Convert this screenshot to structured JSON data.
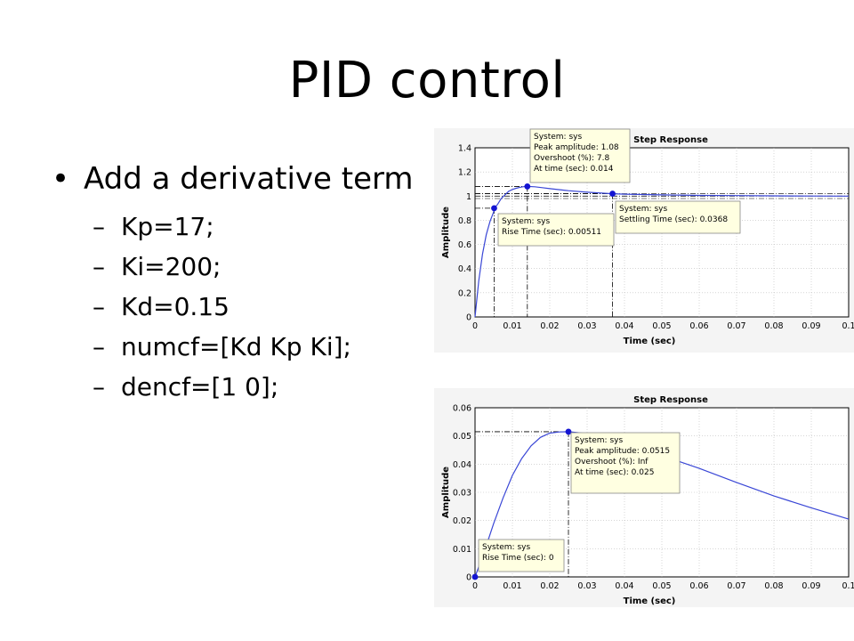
{
  "slide": {
    "title": "PID control",
    "bullet": "Add a derivative term",
    "sub_items": [
      "Kp=17;",
      "Ki=200;",
      "Kd=0.15",
      "numcf=[Kd Kp Ki];",
      "dencf=[1 0];"
    ]
  },
  "colors": {
    "response_line": "#3a47d6",
    "marker": "#1414d2",
    "tooltip_bg": "#ffffe1",
    "panel_bg": "#f4f4f4"
  },
  "chart_data": [
    {
      "type": "line",
      "title": "Step Response",
      "xlabel": "Time (sec)",
      "ylabel": "Amplitude",
      "xlim": [
        0,
        0.1
      ],
      "ylim": [
        0,
        1.4
      ],
      "xticks": [
        "0",
        "0.01",
        "0.02",
        "0.03",
        "0.04",
        "0.05",
        "0.06",
        "0.07",
        "0.08",
        "0.09",
        "0.1"
      ],
      "yticks": [
        "0",
        "0.2",
        "0.4",
        "0.6",
        "0.8",
        "1",
        "1.2",
        "1.4"
      ],
      "grid": true,
      "x": [
        0,
        0.001,
        0.002,
        0.003,
        0.004,
        0.005,
        0.00511,
        0.006,
        0.007,
        0.008,
        0.009,
        0.01,
        0.011,
        0.012,
        0.013,
        0.014,
        0.016,
        0.018,
        0.02,
        0.025,
        0.03,
        0.0368,
        0.04,
        0.05,
        0.06,
        0.07,
        0.08,
        0.09,
        0.1
      ],
      "y": [
        0,
        0.3,
        0.52,
        0.68,
        0.79,
        0.87,
        0.9,
        0.93,
        0.98,
        1.01,
        1.04,
        1.055,
        1.065,
        1.073,
        1.078,
        1.08,
        1.077,
        1.07,
        1.062,
        1.045,
        1.032,
        1.02,
        1.016,
        1.01,
        1.006,
        1.004,
        1.002,
        1.001,
        1.0
      ],
      "markers": [
        {
          "x": 0.00511,
          "y": 0.9
        },
        {
          "x": 0.014,
          "y": 1.08
        },
        {
          "x": 0.0368,
          "y": 1.02
        }
      ],
      "annotations": [
        {
          "lines": [
            "System: sys",
            "Peak amplitude: 1.08",
            "Overshoot (%): 7.8",
            "At time (sec): 0.014"
          ]
        },
        {
          "lines": [
            "System: sys",
            "Rise Time (sec): 0.00511"
          ]
        },
        {
          "lines": [
            "System: sys",
            "Settling Time (sec): 0.0368"
          ]
        }
      ]
    },
    {
      "type": "line",
      "title": "Step Response",
      "xlabel": "Time (sec)",
      "ylabel": "Amplitude",
      "xlim": [
        0,
        0.1
      ],
      "ylim": [
        0,
        0.06
      ],
      "xticks": [
        "0",
        "0.01",
        "0.02",
        "0.03",
        "0.04",
        "0.05",
        "0.06",
        "0.07",
        "0.08",
        "0.09",
        "0.1"
      ],
      "yticks": [
        "0",
        "0.01",
        "0.02",
        "0.03",
        "0.04",
        "0.05",
        "0.06"
      ],
      "grid": true,
      "x": [
        0,
        0.0025,
        0.005,
        0.0075,
        0.01,
        0.0125,
        0.015,
        0.0175,
        0.02,
        0.0225,
        0.025,
        0.03,
        0.035,
        0.04,
        0.05,
        0.06,
        0.07,
        0.08,
        0.09,
        0.1
      ],
      "y": [
        0,
        0.009,
        0.019,
        0.028,
        0.036,
        0.042,
        0.0465,
        0.0495,
        0.051,
        0.0514,
        0.0515,
        0.0508,
        0.0492,
        0.0472,
        0.043,
        0.0385,
        0.0335,
        0.0287,
        0.0245,
        0.0205
      ],
      "markers": [
        {
          "x": 0,
          "y": 0
        },
        {
          "x": 0.025,
          "y": 0.0515
        }
      ],
      "annotations": [
        {
          "lines": [
            "System: sys",
            "Peak amplitude: 0.0515",
            "Overshoot (%): Inf",
            "At time (sec): 0.025"
          ]
        },
        {
          "lines": [
            "System: sys",
            "Rise Time (sec): 0"
          ]
        }
      ]
    }
  ]
}
